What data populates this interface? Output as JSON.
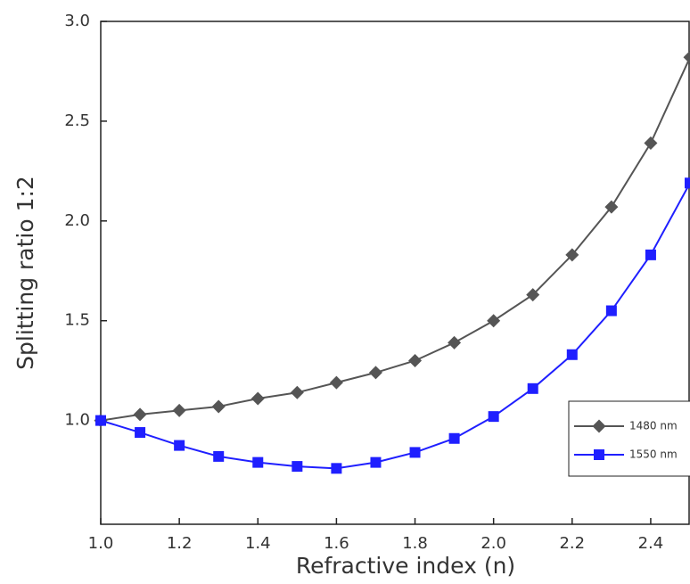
{
  "chart_data": {
    "type": "line",
    "x_label": "Refractive index (n)",
    "y_label": "Splitting ratio 1:2",
    "x": [
      1.0,
      1.1,
      1.2,
      1.3,
      1.4,
      1.5,
      1.6,
      1.7,
      1.8,
      1.9,
      2.0,
      2.1,
      2.2,
      2.3,
      2.4,
      2.5
    ],
    "series": [
      {
        "name": "1480 nm",
        "color": "#555555",
        "marker": "diamond",
        "values": [
          1.0,
          1.03,
          1.05,
          1.07,
          1.11,
          1.14,
          1.19,
          1.24,
          1.3,
          1.39,
          1.5,
          1.63,
          1.83,
          2.07,
          2.39,
          2.82
        ]
      },
      {
        "name": "1550 nm",
        "color": "#1f1fff",
        "marker": "square",
        "values": [
          1.0,
          0.94,
          0.875,
          0.82,
          0.79,
          0.77,
          0.76,
          0.79,
          0.84,
          0.91,
          1.02,
          1.16,
          1.33,
          1.55,
          1.83,
          2.19
        ]
      }
    ],
    "xlim": [
      1.0,
      2.5
    ],
    "ylim": [
      0.48,
      3.0
    ],
    "xticks": [
      {
        "value": 1.0,
        "label": "1.0"
      },
      1.2,
      1.4,
      1.6,
      1.8,
      {
        "value": 2.0,
        "label": "2.0"
      },
      2.2,
      2.4
    ],
    "yticks": [
      {
        "value": 1.0,
        "label": "1.0"
      },
      1.5,
      {
        "value": 2.0,
        "label": "2.0"
      },
      2.5,
      {
        "value": 3.0,
        "label": "3.0"
      }
    ],
    "legend": "lower right"
  }
}
